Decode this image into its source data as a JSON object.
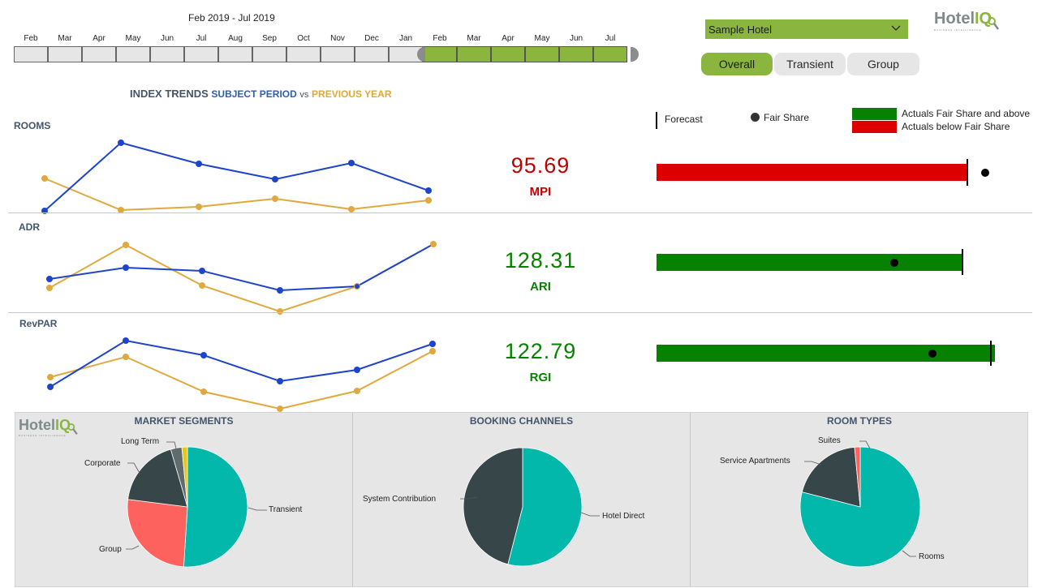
{
  "timeline": {
    "range_label": "Feb 2019 - Jul 2019",
    "months": [
      "Feb",
      "Mar",
      "Apr",
      "May",
      "Jun",
      "Jul",
      "Aug",
      "Sep",
      "Oct",
      "Nov",
      "Dec",
      "Jan",
      "Feb",
      "Mar",
      "Apr",
      "May",
      "Jun",
      "Jul"
    ],
    "selected_from_index": 12,
    "selected_to_index": 17
  },
  "hotel_select": {
    "value": "Sample Hotel"
  },
  "logo": {
    "hotel": "Hotel",
    "iq": "IQ",
    "tagline": "BUSINESS INTELLIGENCE"
  },
  "segments": {
    "overall": "Overall",
    "transient": "Transient",
    "group": "Group",
    "active": "Overall"
  },
  "trends_title": {
    "part1": "INDEX TRENDS",
    "part2": "SUBJECT PERIOD",
    "part3": "vs",
    "part4": "PREVIOUS YEAR"
  },
  "legend": {
    "forecast": "Forecast",
    "fair_share": "Fair Share",
    "above": "Actuals Fair Share and above",
    "below": "Actuals below Fair Share",
    "colors": {
      "above": "#078200",
      "below": "#dd0000",
      "subject": "#1f44cc",
      "previous": "#e0a93f"
    }
  },
  "metrics": [
    {
      "row_label": "ROOMS",
      "kpi_value": "95.69",
      "kpi_label": "MPI",
      "status": "below",
      "bar_fraction": 0.915,
      "forecast_fraction": 0.91,
      "fair_share_fraction": 0.965
    },
    {
      "row_label": "ADR",
      "kpi_value": "128.31",
      "kpi_label": "ARI",
      "status": "above",
      "bar_fraction": 0.905,
      "forecast_fraction": 0.905,
      "fair_share_fraction": 0.705
    },
    {
      "row_label": "RevPAR",
      "kpi_value": "122.79",
      "kpi_label": "RGI",
      "status": "above",
      "bar_fraction": 1.0,
      "forecast_fraction": 0.985,
      "fair_share_fraction": 0.815
    }
  ],
  "pies": [
    {
      "title": "MARKET SEGMENTS",
      "slices": [
        {
          "label": "Transient",
          "value": 51,
          "color": "#01b8aa"
        },
        {
          "label": "Group",
          "value": 26,
          "color": "#fd625e"
        },
        {
          "label": "Corporate",
          "value": 18.5,
          "color": "#374649"
        },
        {
          "label": "Long Term",
          "value": 3,
          "color": "#5f6b6d"
        },
        {
          "label": "",
          "value": 1.5,
          "color": "#e8c619"
        }
      ]
    },
    {
      "title": "BOOKING CHANNELS",
      "slices": [
        {
          "label": "Hotel Direct",
          "value": 54,
          "color": "#01b8aa"
        },
        {
          "label": "System Contribution",
          "value": 46,
          "color": "#374649"
        }
      ]
    },
    {
      "title": "ROOM TYPES",
      "slices": [
        {
          "label": "Rooms",
          "value": 79,
          "color": "#01b8aa"
        },
        {
          "label": "Service Apartments",
          "value": 19.5,
          "color": "#374649"
        },
        {
          "label": "Suites",
          "value": 1.5,
          "color": "#fd625e"
        }
      ]
    }
  ]
}
